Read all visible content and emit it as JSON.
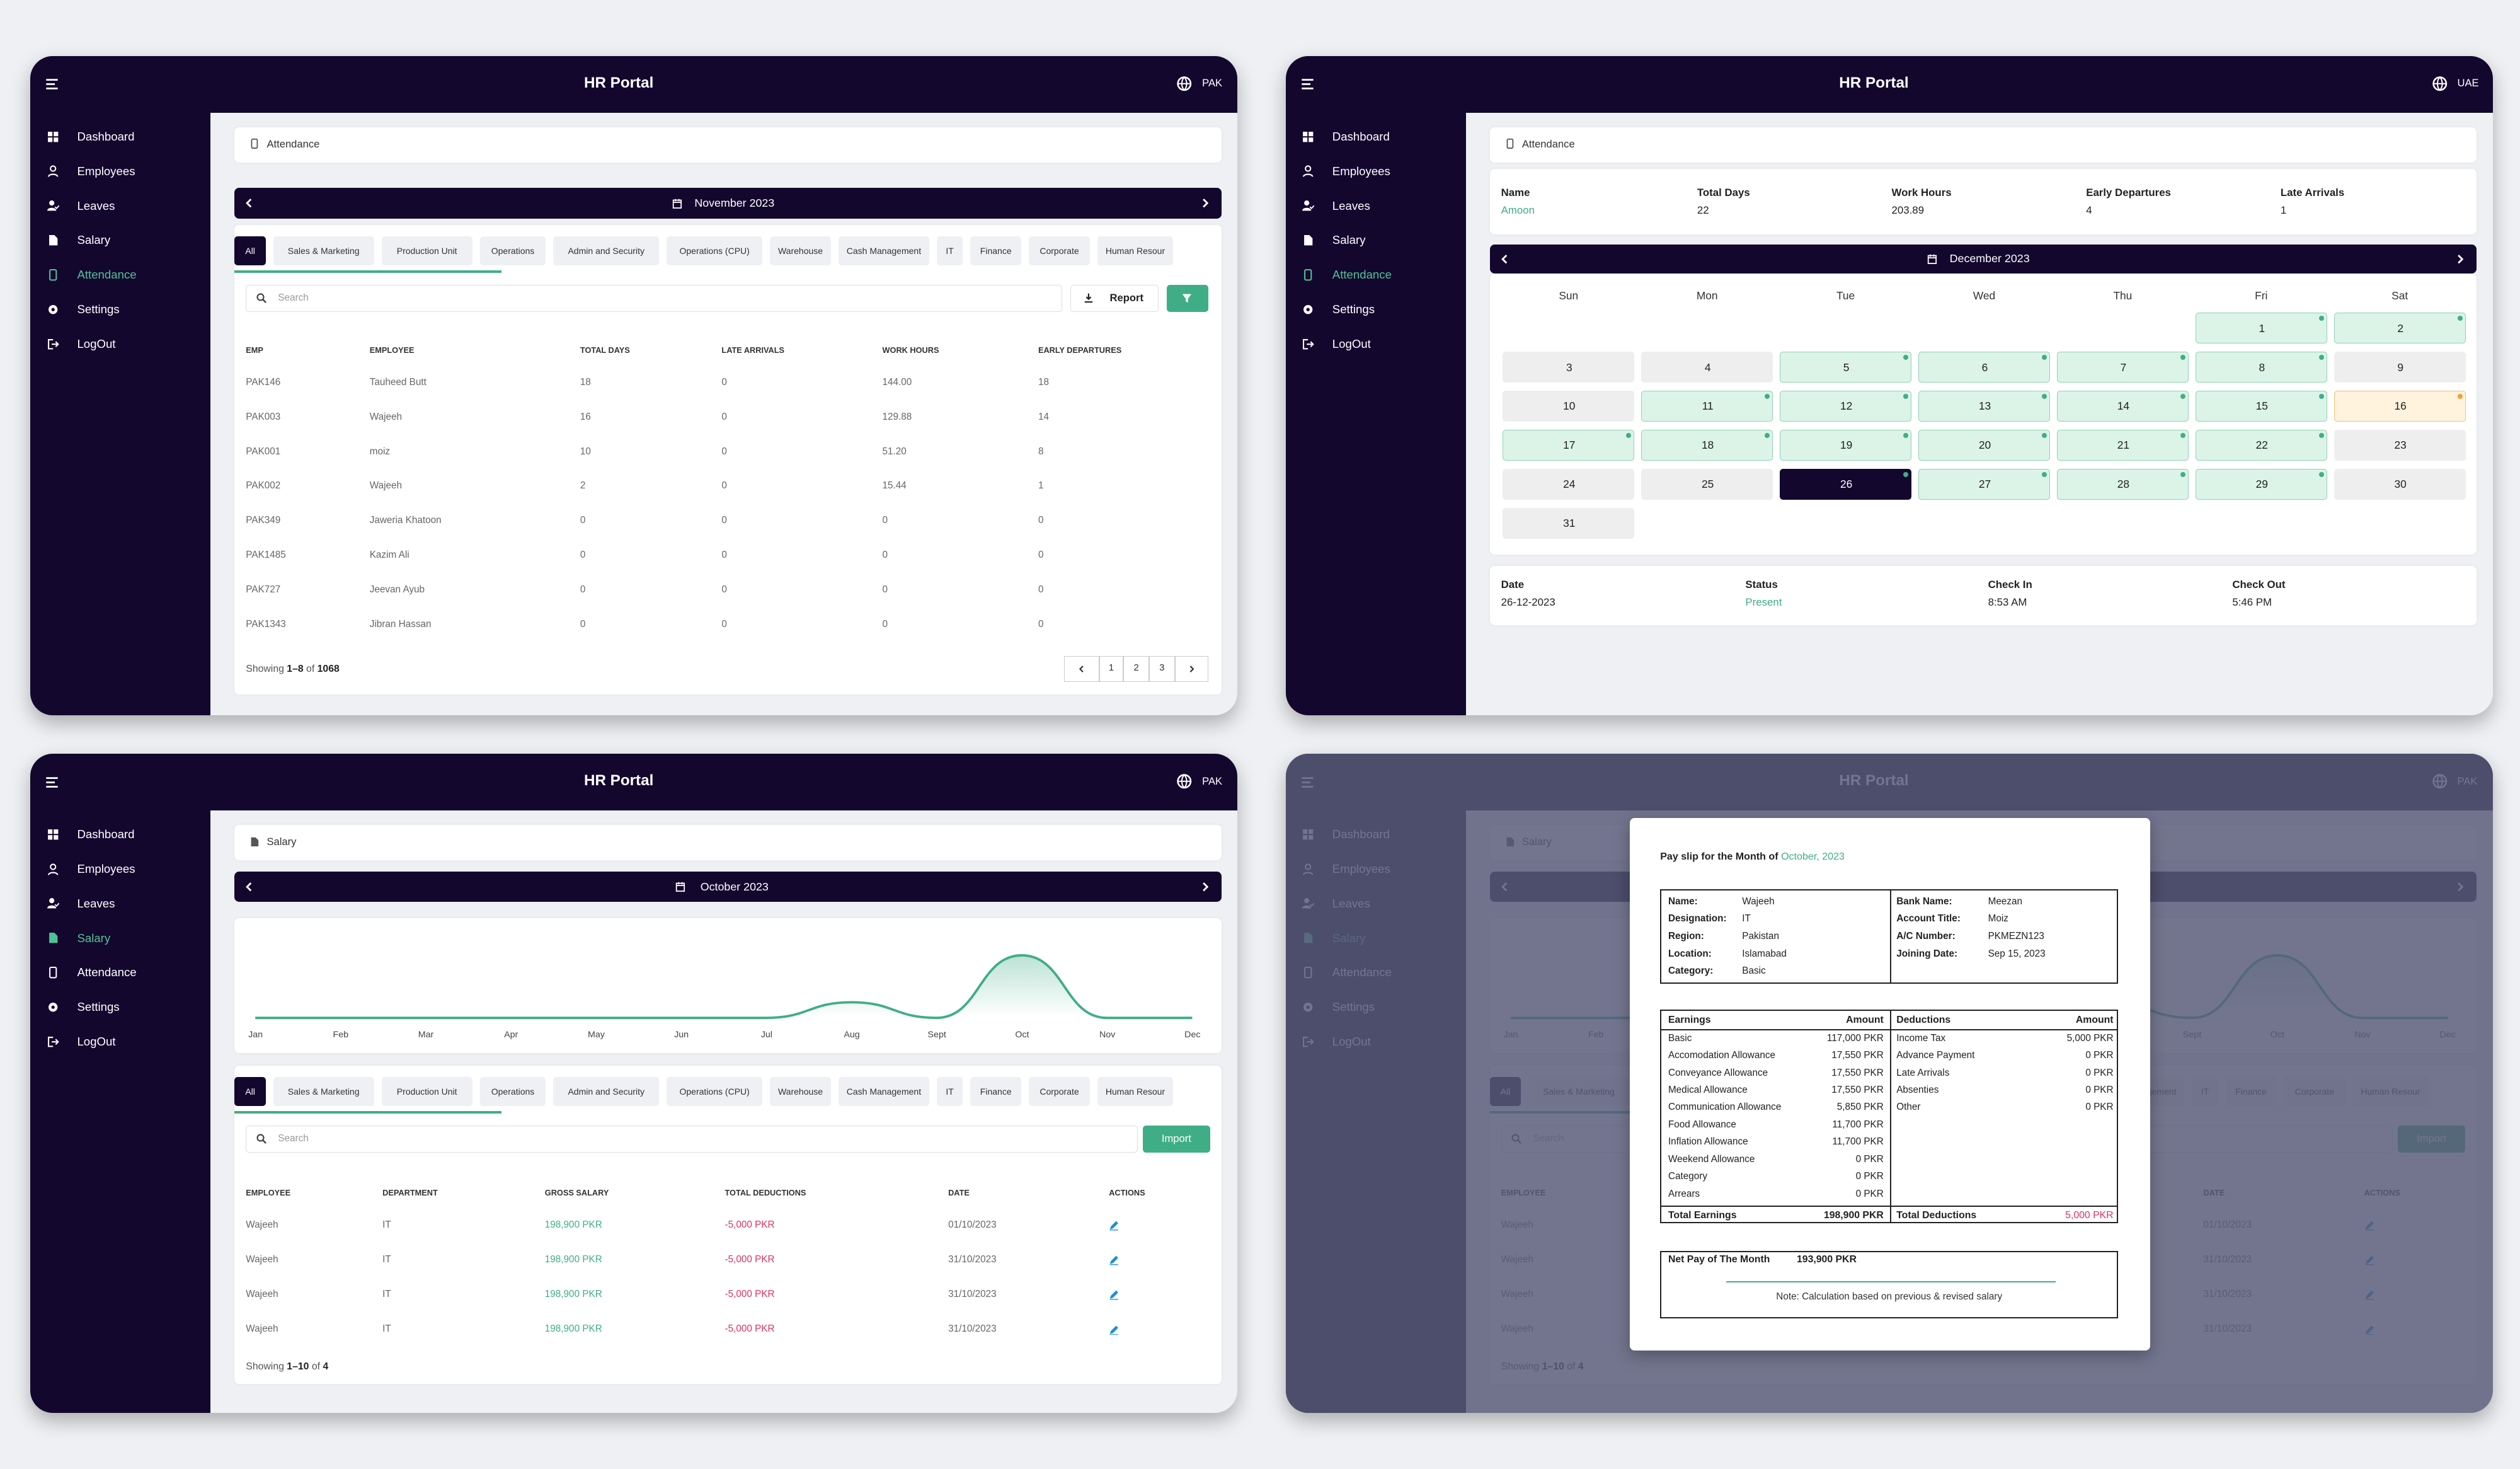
{
  "app_title": "HR Portal",
  "menu": [
    "Dashboard",
    "Employees",
    "Leaves",
    "Salary",
    "Attendance",
    "Settings",
    "LogOut"
  ],
  "tabs": [
    "All",
    "Sales & Marketing",
    "Production Unit",
    "Operations",
    "Admin and Security",
    "Operations (CPU)",
    "Warehouse",
    "Cash Management",
    "IT",
    "Finance",
    "Corporate",
    "Human Resour"
  ],
  "search_placeholder": "Search",
  "panels": [
    {
      "region": "PAK",
      "active_menu": 4,
      "breadcrumb": "Attendance",
      "month": "November 2023",
      "report": "Report",
      "table": {
        "columns": [
          "EMP",
          "EMPLOYEE",
          "TOTAL DAYS",
          "LATE ARRIVALS",
          "WORK HOURS",
          "EARLY DEPARTURES"
        ],
        "rows": [
          [
            "PAK146",
            "Tauheed Butt",
            "18",
            "0",
            "144.00",
            "18"
          ],
          [
            "PAK003",
            "Wajeeh",
            "16",
            "0",
            "129.88",
            "14"
          ],
          [
            "PAK001",
            "moiz",
            "10",
            "0",
            "51.20",
            "8"
          ],
          [
            "PAK002",
            "Wajeeh",
            "2",
            "0",
            "15.44",
            "1"
          ],
          [
            "PAK349",
            "Jaweria Khatoon",
            "0",
            "0",
            "0",
            "0"
          ],
          [
            "PAK1485",
            "Kazim Ali",
            "0",
            "0",
            "0",
            "0"
          ],
          [
            "PAK727",
            "Jeevan Ayub",
            "0",
            "0",
            "0",
            "0"
          ],
          [
            "PAK1343",
            "Jibran Hassan",
            "0",
            "0",
            "0",
            "0"
          ]
        ]
      },
      "showing": [
        "Showing",
        "1–8",
        "of",
        "1068"
      ],
      "pages": [
        "1",
        "2",
        "3"
      ]
    },
    {
      "region": "UAE",
      "active_menu": 4,
      "breadcrumb": "Attendance",
      "summary": [
        {
          "label": "Name",
          "value": "Amoon"
        },
        {
          "label": "Total Days",
          "value": "22"
        },
        {
          "label": "Work Hours",
          "value": "203.89"
        },
        {
          "label": "Early Departures",
          "value": "4"
        },
        {
          "label": "Late Arrivals",
          "value": "1"
        }
      ],
      "month": "December 2023",
      "weekdays": [
        "Sun",
        "Mon",
        "Tue",
        "Wed",
        "Thu",
        "Fri",
        "Sat"
      ],
      "first_weekday": 5,
      "days": [
        1,
        2,
        3,
        4,
        5,
        6,
        7,
        8,
        9,
        10,
        11,
        12,
        13,
        14,
        15,
        16,
        17,
        18,
        19,
        20,
        21,
        22,
        23,
        24,
        25,
        26,
        27,
        28,
        29,
        30,
        31
      ],
      "day_status": [
        "present",
        "present",
        "off",
        "off",
        "present",
        "present",
        "present",
        "present",
        "off",
        "off",
        "present",
        "present",
        "present",
        "present",
        "present",
        "late",
        "present",
        "present",
        "present",
        "present",
        "present",
        "present",
        "off",
        "off",
        "off",
        "selected",
        "present",
        "present",
        "present",
        "off",
        "off"
      ],
      "detail": [
        {
          "label": "Date",
          "value": "26-12-2023"
        },
        {
          "label": "Status",
          "value": "Present"
        },
        {
          "label": "Check In",
          "value": "8:53 AM"
        },
        {
          "label": "Check Out",
          "value": "5:46 PM"
        }
      ]
    },
    {
      "region": "PAK",
      "active_menu": 3,
      "breadcrumb": "Salary",
      "month": "October 2023",
      "import": "Import",
      "chart_data": {
        "type": "line",
        "categories": [
          "Jan",
          "Feb",
          "Mar",
          "Apr",
          "May",
          "Jun",
          "Jul",
          "Aug",
          "Sept",
          "Oct",
          "Nov",
          "Dec"
        ],
        "values": [
          0,
          0,
          0,
          0,
          0,
          0,
          0,
          198900,
          0,
          795600,
          0,
          0
        ],
        "ylim": [
          0,
          900000
        ],
        "color": "#3fae86"
      },
      "table": {
        "columns": [
          "EMPLOYEE",
          "DEPARTMENT",
          "GROSS SALARY",
          "TOTAL DEDUCTIONS",
          "DATE",
          "ACTIONS"
        ],
        "rows": [
          [
            "Wajeeh",
            "IT",
            "198,900 PKR",
            "-5,000 PKR",
            "01/10/2023"
          ],
          [
            "Wajeeh",
            "IT",
            "198,900 PKR",
            "-5,000 PKR",
            "31/10/2023"
          ],
          [
            "Wajeeh",
            "IT",
            "198,900 PKR",
            "-5,000 PKR",
            "31/10/2023"
          ],
          [
            "Wajeeh",
            "IT",
            "198,900 PKR",
            "-5,000 PKR",
            "31/10/2023"
          ]
        ]
      },
      "showing": [
        "Showing",
        "1–10",
        "of",
        "4"
      ]
    },
    {
      "region": "PAK",
      "payslip": {
        "title": "Pay slip for the Month of",
        "month": "October, 2023",
        "info_left": [
          [
            "Name:",
            "Wajeeh"
          ],
          [
            "Designation:",
            "IT"
          ],
          [
            "Region:",
            "Pakistan"
          ],
          [
            "Location:",
            "Islamabad"
          ],
          [
            "Category:",
            "Basic"
          ]
        ],
        "info_right": [
          [
            "Bank Name:",
            "Meezan"
          ],
          [
            "Account Title:",
            "Moiz"
          ],
          [
            "A/C Number:",
            "PKMEZN123"
          ],
          [
            "Joining Date:",
            "Sep 15, 2023"
          ]
        ],
        "earnings": {
          "header": [
            "Earnings",
            "Amount"
          ],
          "rows": [
            [
              "Basic",
              "117,000 PKR"
            ],
            [
              "Accomodation Allowance",
              "17,550 PKR"
            ],
            [
              "Conveyance Allowance",
              "17,550 PKR"
            ],
            [
              "Medical Allowance",
              "17,550 PKR"
            ],
            [
              "Communication Allowance",
              "5,850 PKR"
            ],
            [
              "Food Allowance",
              "11,700 PKR"
            ],
            [
              "Inflation Allowance",
              "11,700 PKR"
            ],
            [
              "Weekend Allowance",
              "0 PKR"
            ],
            [
              "Category",
              "0 PKR"
            ],
            [
              "Arrears",
              "0 PKR"
            ]
          ],
          "total": [
            "Total Earnings",
            "198,900 PKR"
          ]
        },
        "deductions": {
          "header": [
            "Deductions",
            "Amount"
          ],
          "rows": [
            [
              "Income Tax",
              "5,000 PKR"
            ],
            [
              "Advance Payment",
              "0 PKR"
            ],
            [
              "Late Arrivals",
              "0 PKR"
            ],
            [
              "Absenties",
              "0 PKR"
            ],
            [
              "Other",
              "0 PKR"
            ]
          ],
          "total": [
            "Total Deductions",
            "5,000 PKR"
          ]
        },
        "net": [
          "Net Pay of The Month",
          "193,900 PKR"
        ],
        "note": "Note: Calculation based on previous & revised salary"
      }
    }
  ]
}
